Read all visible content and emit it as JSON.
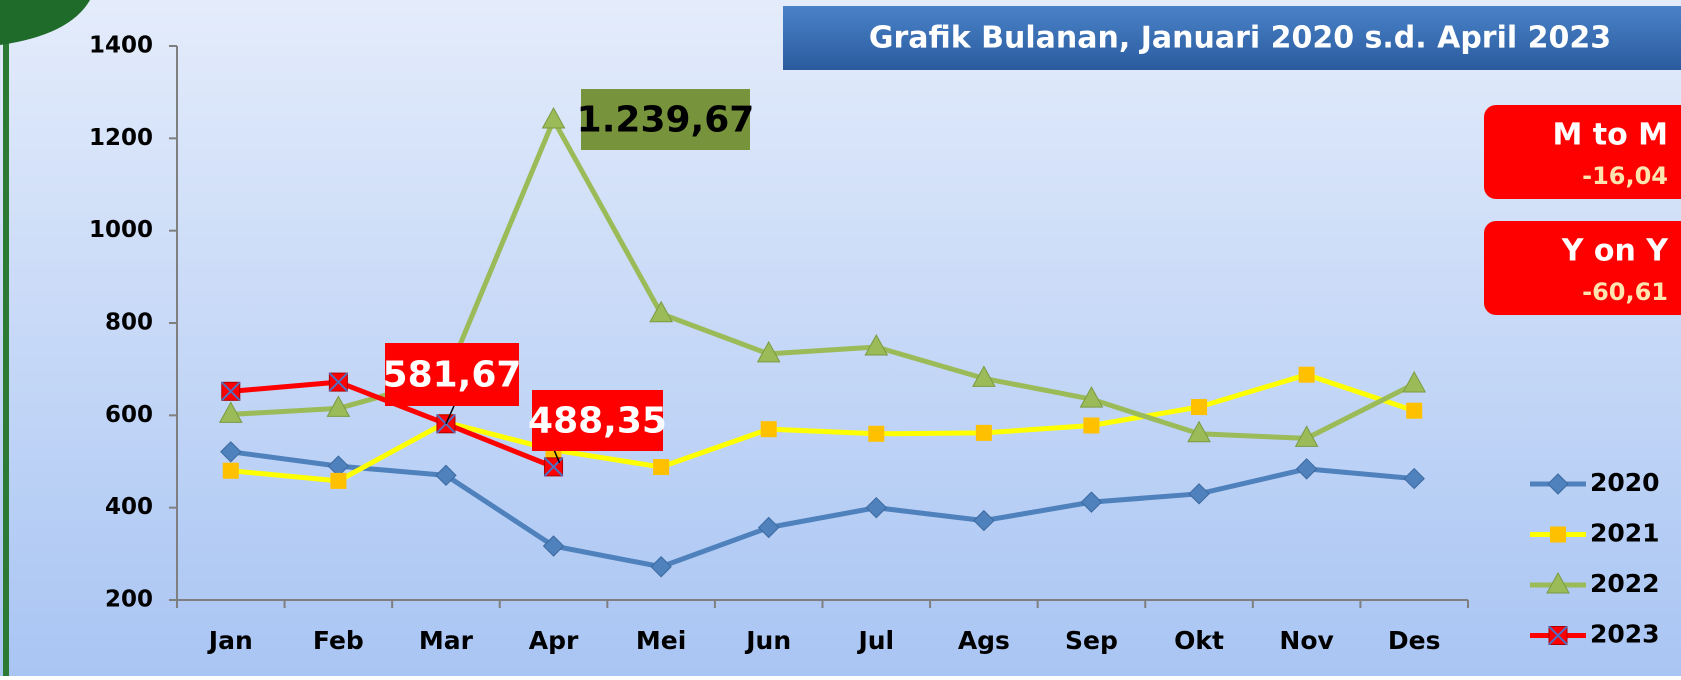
{
  "chart_data": {
    "type": "line",
    "title": "Grafik Bulanan, Januari 2020 s.d. April 2023",
    "categories": [
      "Jan",
      "Feb",
      "Mar",
      "Apr",
      "Mei",
      "Jun",
      "Jul",
      "Ags",
      "Sep",
      "Okt",
      "Nov",
      "Des"
    ],
    "ylim": [
      200,
      1400
    ],
    "yticks": [
      200,
      400,
      600,
      800,
      1000,
      1200,
      1400
    ],
    "legend": "right",
    "series": [
      {
        "name": "2020",
        "color": "#4f81bd",
        "marker": "diamond",
        "values": [
          521,
          490,
          470,
          317,
          272,
          357,
          400,
          372,
          412,
          430,
          484,
          463
        ]
      },
      {
        "name": "2021",
        "color": "#ffff00",
        "marker": "square",
        "values": [
          480,
          458,
          585,
          525,
          488,
          570,
          560,
          562,
          578,
          618,
          688,
          610
        ]
      },
      {
        "name": "2022",
        "color": "#9bbb59",
        "marker": "triangle",
        "values": [
          602,
          615,
          680,
          1239.67,
          820,
          733,
          748,
          680,
          635,
          560,
          550,
          668
        ],
        "value_labels": [
          null,
          null,
          null,
          "1.239,67",
          null,
          null,
          null,
          null,
          null,
          null,
          null,
          null
        ]
      },
      {
        "name": "2023",
        "color": "#ff0000",
        "marker": "xsquare",
        "values": [
          652,
          672,
          581.67,
          488.35,
          null,
          null,
          null,
          null,
          null,
          null,
          null,
          null
        ],
        "value_labels": [
          null,
          null,
          "581,67",
          "488,35",
          null,
          null,
          null,
          null,
          null,
          null,
          null,
          null
        ]
      }
    ]
  },
  "indicators": [
    {
      "label": "M to M",
      "value": "-16,04"
    },
    {
      "label": "Y on Y",
      "value": "-60,61"
    }
  ]
}
